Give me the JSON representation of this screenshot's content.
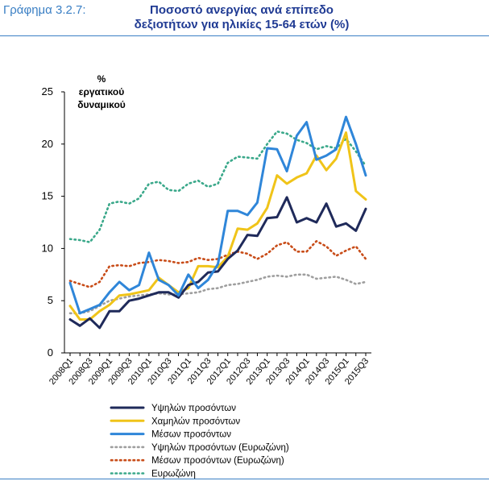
{
  "header": {
    "label": "Γράφημα 3.2.7:",
    "title_line1": "Ποσοστό ανεργίας ανά επίπεδο",
    "title_line2": "δεξιοτήτων για ηλικίες 15-64 ετών (%)"
  },
  "colors": {
    "accent": "#3a7fc4",
    "title": "#1f3a93"
  },
  "chart_data": {
    "type": "line",
    "ylabel_lines": [
      "%",
      "εργατικού",
      "δυναμικού"
    ],
    "ylim": [
      0,
      25
    ],
    "yticks": [
      0,
      5,
      10,
      15,
      20,
      25
    ],
    "grid": false,
    "legend_position": "bottom",
    "x": [
      "2008Q1",
      "2008Q2",
      "2008Q3",
      "2008Q4",
      "2009Q1",
      "2009Q2",
      "2009Q3",
      "2009Q4",
      "2010Q1",
      "2010Q2",
      "2010Q3",
      "2010Q4",
      "2011Q1",
      "2011Q2",
      "2011Q3",
      "2011Q4",
      "2012Q1",
      "2012Q2",
      "2012Q3",
      "2012Q4",
      "2013Q1",
      "2013Q2",
      "2013Q3",
      "2013Q4",
      "2014Q1",
      "2014Q2",
      "2014Q3",
      "2014Q4",
      "2015Q1",
      "2015Q2",
      "2015Q3"
    ],
    "xtick_labels": [
      "2008Q1",
      "2008Q3",
      "2009Q1",
      "2009Q3",
      "2010Q1",
      "2010Q3",
      "2011Q1",
      "2011Q3",
      "2012Q1",
      "2012Q3",
      "2013Q1",
      "2013Q3",
      "2014Q1",
      "2014Q3",
      "2015Q1",
      "2015Q3"
    ],
    "series": [
      {
        "name": "Υψηλών προσόντων",
        "color": "#1f2a5a",
        "dash": "solid",
        "values": [
          3.2,
          2.6,
          3.3,
          2.4,
          4.0,
          4.0,
          5.0,
          5.2,
          5.5,
          5.8,
          5.8,
          5.3,
          6.5,
          6.8,
          7.7,
          7.8,
          9.0,
          9.8,
          11.3,
          11.2,
          12.9,
          13.0,
          14.9,
          12.5,
          12.9,
          12.5,
          14.3,
          12.1,
          12.4,
          11.7,
          13.8
        ]
      },
      {
        "name": "Χαμηλών προσόντων",
        "color": "#f0c419",
        "dash": "solid",
        "values": [
          4.5,
          3.2,
          3.2,
          4.0,
          4.6,
          5.5,
          5.6,
          5.8,
          6.0,
          7.2,
          6.5,
          5.8,
          6.2,
          8.3,
          8.3,
          8.2,
          9.2,
          11.9,
          11.8,
          12.4,
          13.9,
          17.0,
          16.2,
          16.8,
          17.2,
          18.9,
          17.5,
          18.6,
          21.1,
          15.5,
          14.7
        ]
      },
      {
        "name": "Μέσων προσόντων",
        "color": "#2f86d9",
        "dash": "solid",
        "values": [
          6.7,
          3.8,
          4.2,
          4.6,
          5.8,
          6.8,
          6.0,
          6.5,
          9.6,
          7.0,
          6.5,
          5.5,
          7.5,
          6.2,
          7.0,
          8.5,
          13.6,
          13.6,
          13.2,
          14.4,
          19.6,
          19.5,
          17.4,
          20.8,
          22.1,
          18.5,
          18.9,
          19.5,
          22.6,
          20.0,
          17.0
        ]
      },
      {
        "name": "Υψηλών προσόντων (Ευρωζώνη)",
        "color": "#9e9e9e",
        "dash": "dot",
        "values": [
          3.8,
          3.8,
          4.0,
          4.5,
          5.0,
          5.2,
          5.4,
          5.5,
          5.6,
          5.7,
          5.6,
          5.6,
          5.7,
          5.8,
          6.1,
          6.2,
          6.5,
          6.6,
          6.8,
          7.0,
          7.3,
          7.4,
          7.3,
          7.5,
          7.5,
          7.1,
          7.2,
          7.3,
          7.0,
          6.6,
          6.8
        ]
      },
      {
        "name": "Μέσων προσόντων (Ευρωζώνη)",
        "color": "#c84c18",
        "dash": "dot",
        "values": [
          6.9,
          6.6,
          6.3,
          6.8,
          8.3,
          8.4,
          8.3,
          8.6,
          8.7,
          8.9,
          8.8,
          8.6,
          8.7,
          9.1,
          8.9,
          9.0,
          9.4,
          9.7,
          9.5,
          9.0,
          9.5,
          10.3,
          10.6,
          9.7,
          9.7,
          10.7,
          10.2,
          9.3,
          9.8,
          10.2,
          9.0
        ]
      },
      {
        "name": "Ευρωζώνη",
        "color": "#3aa88a",
        "dash": "dot",
        "values": [
          10.9,
          10.8,
          10.6,
          11.8,
          14.3,
          14.5,
          14.3,
          14.8,
          16.2,
          16.4,
          15.6,
          15.5,
          16.2,
          16.5,
          15.9,
          16.2,
          18.2,
          18.8,
          18.7,
          18.6,
          20.0,
          21.2,
          21.0,
          20.4,
          20.1,
          19.5,
          19.8,
          19.6,
          20.5,
          19.3,
          17.9
        ]
      }
    ]
  }
}
